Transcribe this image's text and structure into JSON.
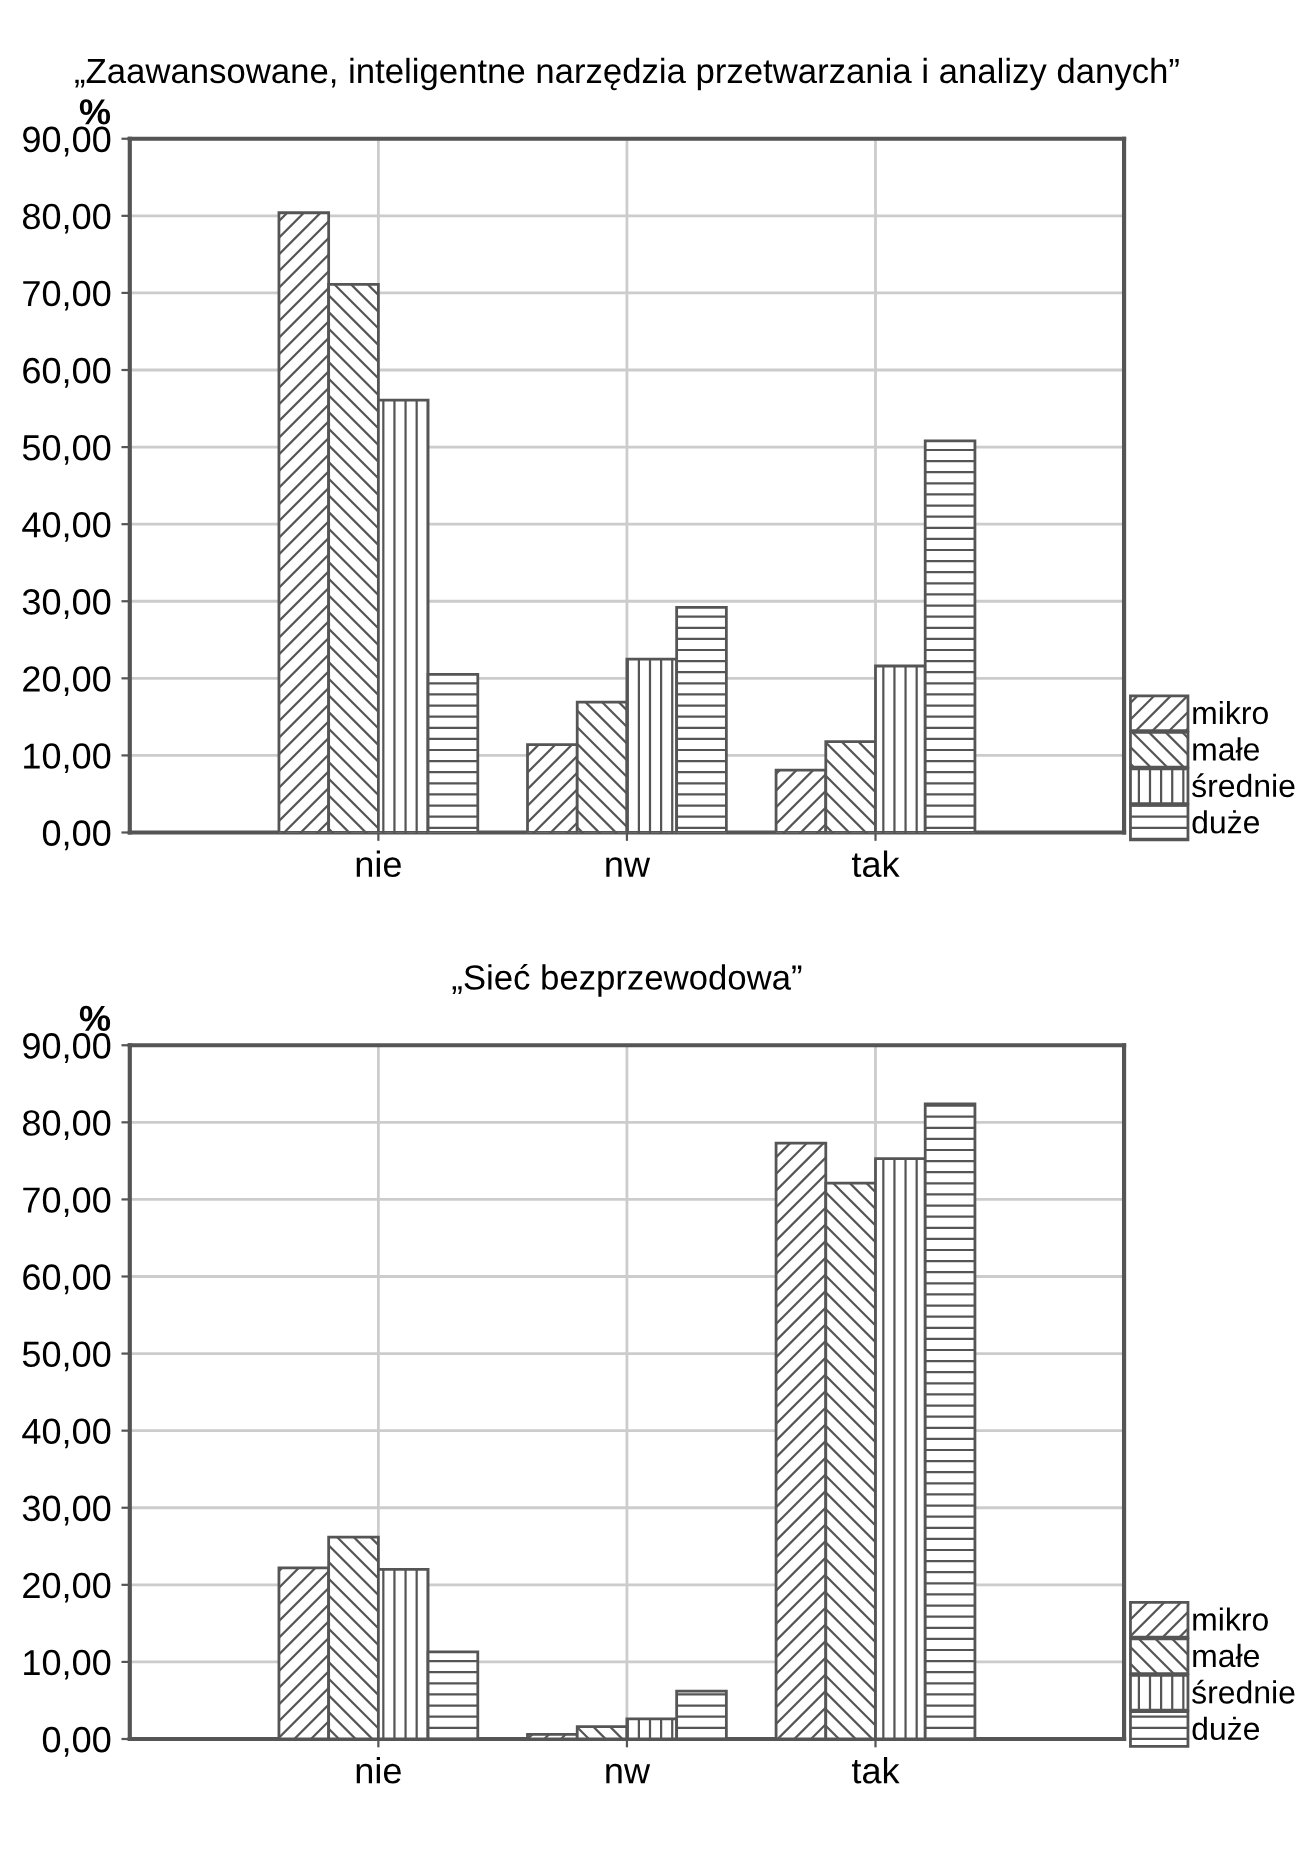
{
  "chart_data": [
    {
      "type": "bar",
      "title": "„Zaawansowane, inteligentne narzędzia przetwarzania i analizy danych”",
      "ylabel": "%",
      "categories": [
        "nie",
        "nw",
        "tak"
      ],
      "series": [
        {
          "name": "mikro",
          "color": "#555555",
          "values": [
            80.4,
            11.4,
            8.1
          ]
        },
        {
          "name": "małe",
          "color": "#555555",
          "values": [
            71.1,
            16.9,
            11.8
          ]
        },
        {
          "name": "średnie",
          "color": "#555555",
          "values": [
            56.1,
            22.5,
            21.6
          ]
        },
        {
          "name": "duże",
          "color": "#555555",
          "values": [
            20.5,
            29.2,
            50.8
          ]
        }
      ],
      "ylim": [
        0,
        90
      ],
      "yticks": [
        {
          "value": 0,
          "label": "0,00"
        },
        {
          "value": 10,
          "label": "10,00"
        },
        {
          "value": 20,
          "label": "20,00"
        },
        {
          "value": 30,
          "label": "30,00"
        },
        {
          "value": 40,
          "label": "40,00"
        },
        {
          "value": 50,
          "label": "50,00"
        },
        {
          "value": 60,
          "label": "60,00"
        },
        {
          "value": 70,
          "label": "70,00"
        },
        {
          "value": 80,
          "label": "80,00"
        },
        {
          "value": 90,
          "label": "90,00"
        }
      ],
      "grid": true,
      "legend": "bottom right"
    },
    {
      "type": "bar",
      "title": "„Sieć bezprzewodowa”",
      "ylabel": "%",
      "categories": [
        "nie",
        "nw",
        "tak"
      ],
      "series": [
        {
          "name": "mikro",
          "color": "#555555",
          "values": [
            22.2,
            0.6,
            77.3
          ]
        },
        {
          "name": "małe",
          "color": "#555555",
          "values": [
            26.2,
            1.6,
            72.1
          ]
        },
        {
          "name": "średnie",
          "color": "#555555",
          "values": [
            22.0,
            2.6,
            75.3
          ]
        },
        {
          "name": "duże",
          "color": "#555555",
          "values": [
            11.3,
            6.2,
            82.4
          ]
        }
      ],
      "ylim": [
        0,
        90
      ],
      "yticks": [
        {
          "value": 0,
          "label": "0,00"
        },
        {
          "value": 10,
          "label": "10,00"
        },
        {
          "value": 20,
          "label": "20,00"
        },
        {
          "value": 30,
          "label": "30,00"
        },
        {
          "value": 40,
          "label": "40,00"
        },
        {
          "value": 50,
          "label": "50,00"
        },
        {
          "value": 60,
          "label": "60,00"
        },
        {
          "value": 70,
          "label": "70,00"
        },
        {
          "value": 80,
          "label": "80,00"
        },
        {
          "value": 90,
          "label": "90,00"
        }
      ],
      "grid": true,
      "legend": "bottom right"
    }
  ]
}
